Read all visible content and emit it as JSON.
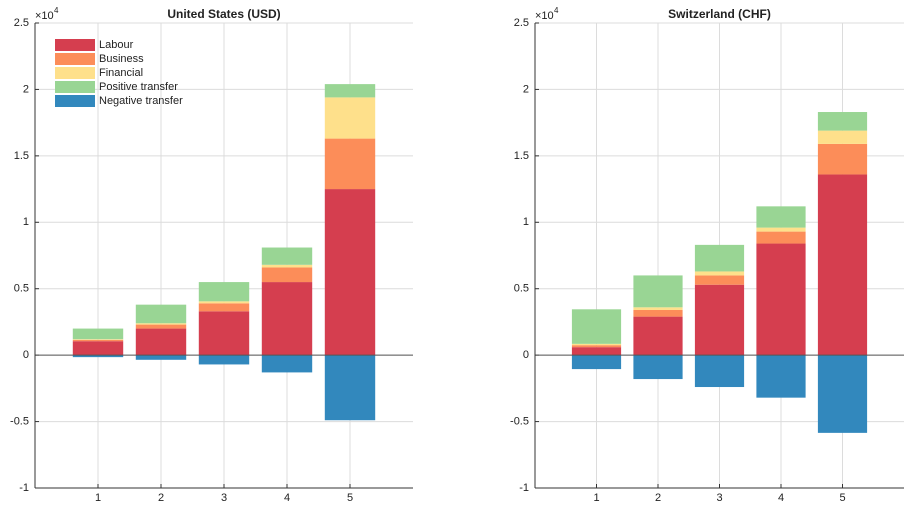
{
  "chart_data": [
    {
      "type": "stacked_bar",
      "title": "United States (USD)",
      "y_multiplier": {
        "base": "×10",
        "exponent": "4"
      },
      "x": [
        1,
        2,
        3,
        4,
        5
      ],
      "xlim": [
        0,
        6
      ],
      "xticks": [
        1,
        2,
        3,
        4,
        5
      ],
      "ylim": [
        -1,
        2.5
      ],
      "yticks": [
        -1,
        -0.5,
        0,
        0.5,
        1,
        1.5,
        2,
        2.5
      ],
      "grid": true,
      "legend": "upper left",
      "series": [
        {
          "name": "Labour",
          "color": "#d53e4f",
          "values": [
            0.105,
            0.2,
            0.33,
            0.55,
            1.25
          ]
        },
        {
          "name": "Business",
          "color": "#fc8d59",
          "values": [
            0.01,
            0.03,
            0.06,
            0.11,
            0.38
          ]
        },
        {
          "name": "Financial",
          "color": "#fee08b",
          "values": [
            0.005,
            0.01,
            0.015,
            0.02,
            0.31
          ]
        },
        {
          "name": "Positive transfer",
          "color": "#99d594",
          "values": [
            0.08,
            0.14,
            0.145,
            0.13,
            0.1
          ]
        },
        {
          "name": "Negative transfer",
          "color": "#3288bd",
          "values": [
            -0.015,
            -0.035,
            -0.07,
            -0.13,
            -0.49
          ]
        }
      ]
    },
    {
      "type": "stacked_bar",
      "title": "Switzerland (CHF)",
      "y_multiplier": {
        "base": "×10",
        "exponent": "4"
      },
      "x": [
        1,
        2,
        3,
        4,
        5
      ],
      "xlim": [
        0,
        6
      ],
      "xticks": [
        1,
        2,
        3,
        4,
        5
      ],
      "ylim": [
        -1,
        2.5
      ],
      "yticks": [
        -1,
        -0.5,
        0,
        0.5,
        1,
        1.5,
        2,
        2.5
      ],
      "grid": true,
      "series": [
        {
          "name": "Labour",
          "color": "#d53e4f",
          "values": [
            0.06,
            0.29,
            0.53,
            0.84,
            1.36
          ]
        },
        {
          "name": "Business",
          "color": "#fc8d59",
          "values": [
            0.015,
            0.05,
            0.07,
            0.09,
            0.23
          ]
        },
        {
          "name": "Financial",
          "color": "#fee08b",
          "values": [
            0.01,
            0.02,
            0.03,
            0.03,
            0.1
          ]
        },
        {
          "name": "Positive transfer",
          "color": "#99d594",
          "values": [
            0.26,
            0.24,
            0.2,
            0.16,
            0.14
          ]
        },
        {
          "name": "Negative transfer",
          "color": "#3288bd",
          "values": [
            -0.105,
            -0.18,
            -0.24,
            -0.32,
            -0.585
          ]
        }
      ]
    }
  ]
}
